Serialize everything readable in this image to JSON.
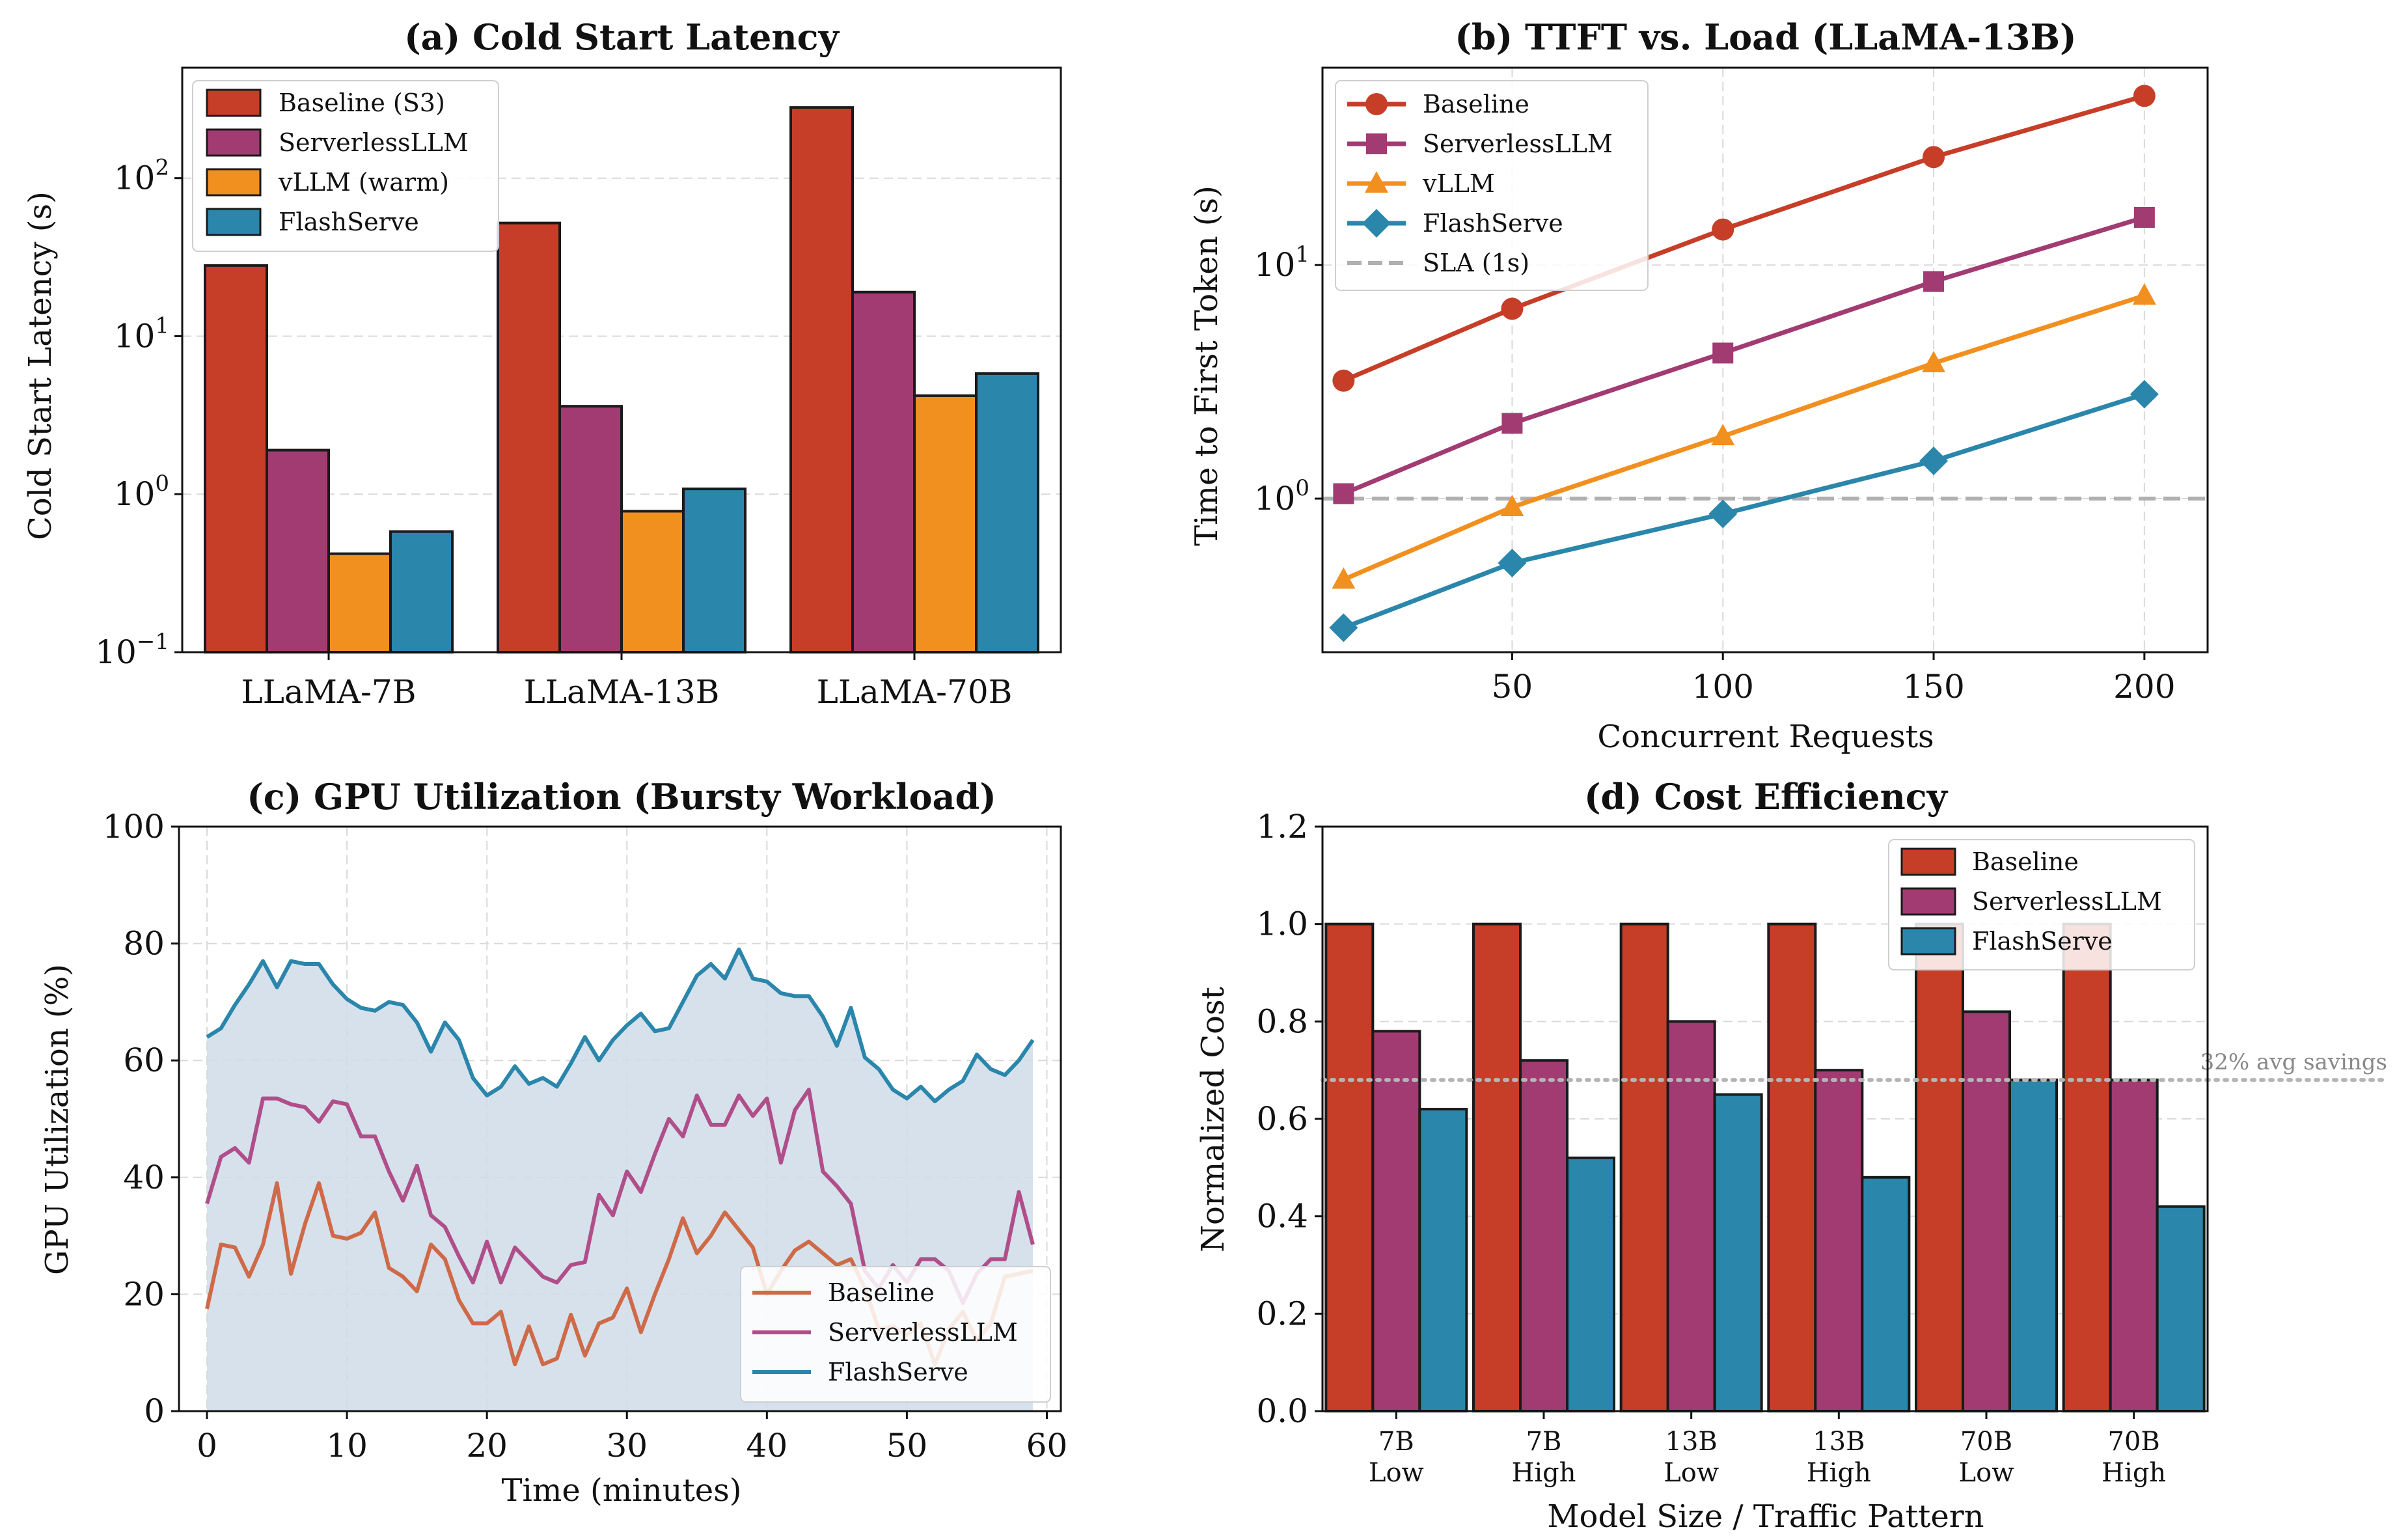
{
  "chart_data": [
    {
      "panel": "a",
      "type": "bar",
      "title": "(a) Cold Start Latency",
      "xlabel": "",
      "ylabel": "Cold Start Latency (s)",
      "yscale": "log",
      "ylim": [
        0.1,
        500
      ],
      "yticks": [
        {
          "value": 0.1,
          "base": "10",
          "exp": "−1"
        },
        {
          "value": 1,
          "base": "10",
          "exp": "0"
        },
        {
          "value": 10,
          "base": "10",
          "exp": "1"
        },
        {
          "value": 100,
          "base": "10",
          "exp": "2"
        }
      ],
      "categories": [
        "LLaMA-7B",
        "LLaMA-13B",
        "LLaMA-70B"
      ],
      "legend_position": "upper-left",
      "series": [
        {
          "name": "Baseline (S3)",
          "color": "#c73e28",
          "values": [
            28,
            52,
            280
          ]
        },
        {
          "name": "ServerlessLLM",
          "color": "#a23b72",
          "values": [
            1.9,
            3.6,
            19
          ]
        },
        {
          "name": "vLLM (warm)",
          "color": "#f18f1f",
          "values": [
            0.42,
            0.78,
            4.2
          ]
        },
        {
          "name": "FlashServe",
          "color": "#2a86ab",
          "values": [
            0.58,
            1.08,
            5.8
          ]
        }
      ]
    },
    {
      "panel": "b",
      "type": "line",
      "title": "(b) TTFT vs. Load (LLaMA-13B)",
      "xlabel": "Concurrent Requests",
      "ylabel": "Time to First Token (s)",
      "yscale": "log",
      "xlim": [
        5,
        215
      ],
      "ylim": [
        0.22,
        70
      ],
      "xticks": [
        50,
        100,
        150,
        200
      ],
      "yticks": [
        {
          "value": 1,
          "base": "10",
          "exp": "0"
        },
        {
          "value": 10,
          "base": "10",
          "exp": "1"
        }
      ],
      "x": [
        10,
        50,
        100,
        150,
        200
      ],
      "legend_position": "upper-left",
      "series": [
        {
          "name": "Baseline",
          "color": "#c73e28",
          "marker": "circle",
          "values": [
            3.2,
            6.5,
            14.2,
            29,
            53
          ]
        },
        {
          "name": "ServerlessLLM",
          "color": "#a23b72",
          "marker": "square",
          "values": [
            1.05,
            2.1,
            4.2,
            8.5,
            16
          ]
        },
        {
          "name": "vLLM",
          "color": "#f18f1f",
          "marker": "triangle",
          "values": [
            0.45,
            0.92,
            1.85,
            3.8,
            7.4
          ]
        },
        {
          "name": "FlashServe",
          "color": "#2a86ab",
          "marker": "diamond",
          "values": [
            0.28,
            0.53,
            0.86,
            1.45,
            2.8
          ]
        }
      ],
      "reference_line": {
        "name": "SLA (1s)",
        "value": 1,
        "color": "#b0b0b0"
      }
    },
    {
      "panel": "c",
      "type": "line",
      "title": "(c) GPU Utilization (Bursty Workload)",
      "xlabel": "Time (minutes)",
      "ylabel": "GPU Utilization (%)",
      "xlim": [
        -2,
        61
      ],
      "ylim": [
        0,
        100
      ],
      "xticks": [
        0,
        10,
        20,
        30,
        40,
        50,
        60
      ],
      "yticks": [
        0,
        20,
        40,
        60,
        80,
        100
      ],
      "legend_position": "lower-right",
      "fill_series": "FlashServe",
      "fill_color": "#cfdce9",
      "series": [
        {
          "name": "Baseline",
          "color": "#cf6a48",
          "values": [
            17.5,
            28.5,
            28,
            23,
            28.5,
            39,
            23.5,
            32,
            39,
            30,
            29.5,
            30.5,
            34,
            24.5,
            23,
            20.5,
            28.5,
            26,
            19,
            15,
            15,
            17,
            8,
            14.5,
            8,
            9,
            16.5,
            9.5,
            15,
            16,
            21,
            13.5,
            20,
            26,
            33,
            27,
            30,
            34,
            31,
            28,
            20,
            24,
            27.5,
            29,
            27,
            25,
            26,
            21,
            14,
            14.5,
            13,
            15,
            8,
            14,
            17,
            12,
            15,
            23,
            23.5,
            24
          ]
        },
        {
          "name": "ServerlessLLM",
          "color": "#b04e8a",
          "values": [
            35.5,
            43.5,
            45,
            42.5,
            53.5,
            53.5,
            52.5,
            52,
            49.5,
            53,
            52.5,
            47,
            47,
            41,
            36,
            42,
            33.5,
            31.5,
            26.5,
            22,
            29,
            22,
            28,
            25.5,
            23,
            22,
            25,
            25.5,
            37,
            33.5,
            41,
            37.5,
            44,
            50,
            47,
            54,
            49,
            49,
            54,
            50.5,
            53.5,
            42.5,
            51.5,
            55,
            41,
            38.5,
            35.5,
            24,
            21,
            25,
            22,
            26,
            26,
            24,
            18.5,
            23.5,
            26,
            26,
            37.5,
            28.5
          ]
        },
        {
          "name": "FlashServe",
          "color": "#2a86ab",
          "values": [
            64,
            65.5,
            69.5,
            73,
            77,
            72.5,
            77,
            76.5,
            76.5,
            73,
            70.5,
            69,
            68.5,
            70,
            69.5,
            66.5,
            61.5,
            66.5,
            63.5,
            57,
            54,
            55.5,
            59,
            56,
            57,
            55.5,
            59.5,
            64,
            60,
            63.5,
            66,
            68,
            65,
            65.5,
            70,
            74.5,
            76.5,
            74,
            79,
            74,
            73.5,
            71.5,
            71,
            71,
            67.5,
            62.5,
            69,
            60.5,
            58.5,
            55,
            53.5,
            55.5,
            53,
            55,
            56.5,
            61,
            58.5,
            57.5,
            60,
            63.5
          ]
        }
      ]
    },
    {
      "panel": "d",
      "type": "bar",
      "title": "(d) Cost Efficiency",
      "xlabel": "Model Size / Traffic Pattern",
      "ylabel": "Normalized Cost",
      "ylim": [
        0,
        1.2
      ],
      "yticks": [
        0.0,
        0.2,
        0.4,
        0.6,
        0.8,
        1.0,
        1.2
      ],
      "categories": [
        [
          "7B",
          "Low"
        ],
        [
          "7B",
          "High"
        ],
        [
          "13B",
          "Low"
        ],
        [
          "13B",
          "High"
        ],
        [
          "70B",
          "Low"
        ],
        [
          "70B",
          "High"
        ]
      ],
      "legend_position": "upper-right",
      "series": [
        {
          "name": "Baseline",
          "color": "#c73e28",
          "values": [
            1.0,
            1.0,
            1.0,
            1.0,
            1.0,
            1.0
          ]
        },
        {
          "name": "ServerlessLLM",
          "color": "#a23b72",
          "values": [
            0.78,
            0.72,
            0.8,
            0.7,
            0.82,
            0.68
          ]
        },
        {
          "name": "FlashServe",
          "color": "#2a86ab",
          "values": [
            0.62,
            0.52,
            0.65,
            0.48,
            0.68,
            0.42
          ]
        }
      ],
      "reference_line": {
        "value": 0.68,
        "label": "32% avg savings",
        "color": "#b5b5b5"
      }
    }
  ]
}
